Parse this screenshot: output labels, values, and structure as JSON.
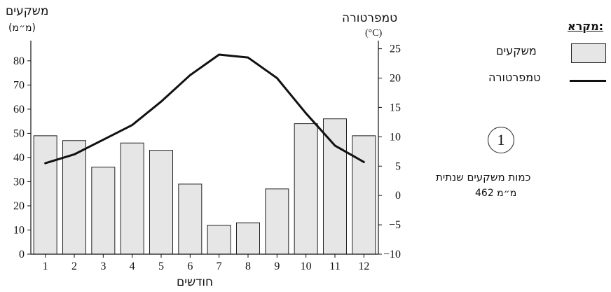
{
  "labels": {
    "rain_axis_title": "משקעים",
    "rain_axis_unit": "(מ״מ)",
    "temp_axis_title": "טמפרטורה",
    "temp_axis_unit": "(°C)",
    "x_axis_title": "חודשים"
  },
  "legend": {
    "title": "מקרא:",
    "rain_label": "משקעים",
    "temp_label": "טמפרטורה"
  },
  "station": {
    "number": "1",
    "annual_label": "כמות משקעים שנתית",
    "annual_value": "462 מ״מ"
  },
  "colors": {
    "bar_fill": "#e6e6e6",
    "bar_stroke": "#222222",
    "line": "#111111"
  },
  "chart_data": {
    "type": "bar",
    "categories": [
      "1",
      "2",
      "3",
      "4",
      "5",
      "6",
      "7",
      "8",
      "9",
      "10",
      "11",
      "12"
    ],
    "series": [
      {
        "name": "משקעים",
        "type": "bar",
        "axis": "left",
        "values": [
          49,
          47,
          36,
          46,
          43,
          29,
          12,
          13,
          27,
          54,
          56,
          49
        ]
      },
      {
        "name": "טמפרטורה",
        "type": "line",
        "axis": "right",
        "values": [
          5.5,
          7,
          9.5,
          12,
          16,
          20.5,
          24,
          23.5,
          20,
          14,
          8.5,
          5.7
        ]
      }
    ],
    "xlabel": "חודשים",
    "ylabel_left": "משקעים (מ״מ)",
    "ylabel_right": "טמפרטורה (°C)",
    "ylim_left": [
      0,
      85
    ],
    "yticks_left": [
      0,
      10,
      20,
      30,
      40,
      50,
      60,
      70,
      80
    ],
    "ylim_right": [
      -10,
      25
    ],
    "yticks_right": [
      -10,
      -5,
      0,
      5,
      10,
      15,
      20,
      25
    ],
    "grid": false
  }
}
